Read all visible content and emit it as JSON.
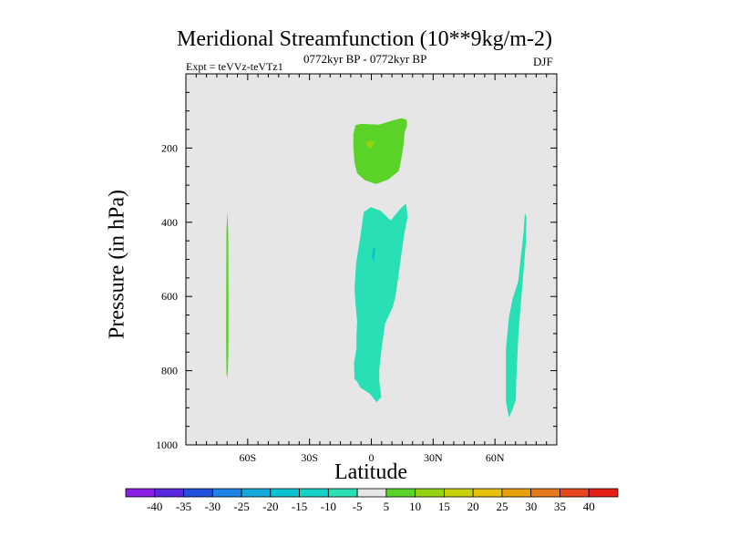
{
  "chart_data": {
    "type": "contour",
    "title": "Meridional Streamfunction (10**9kg/m-2)",
    "left_string": "Expt = teVVz-teVTz1",
    "center_string": "0772kyr BP - 0772kyr BP",
    "right_string": "DJF",
    "xlabel": "Latitude",
    "ylabel": "Pressure (in hPa)",
    "xlim": [
      -90,
      90
    ],
    "ylim": [
      1000,
      0
    ],
    "y_reversed": true,
    "x_ticks": [
      -60,
      -30,
      0,
      30,
      60
    ],
    "x_tick_labels": [
      "60S",
      "30S",
      "0",
      "30N",
      "60N"
    ],
    "y_ticks": [
      200,
      400,
      600,
      800,
      1000
    ],
    "y_tick_labels": [
      "200",
      "400",
      "600",
      "800",
      "1000"
    ],
    "background_color": "#e6e6e6",
    "colorbar": {
      "levels": [
        -40,
        -35,
        -30,
        -25,
        -20,
        -15,
        -10,
        -5,
        5,
        10,
        15,
        20,
        25,
        30,
        35,
        40
      ],
      "level_labels": [
        "-40",
        "-35",
        "-30",
        "-25",
        "-20",
        "-15",
        "-10",
        "-5",
        "5",
        "10",
        "15",
        "20",
        "25",
        "30",
        "35",
        "40"
      ],
      "colors": [
        "#8c1ee6",
        "#5a28dc",
        "#2050dc",
        "#1e82e6",
        "#14aadc",
        "#0ac3d2",
        "#14d2c8",
        "#28e0b4",
        "#e6e6e6",
        "#5ad228",
        "#96d214",
        "#c8d20a",
        "#e6c30a",
        "#e6a00a",
        "#e6781e",
        "#e6461e",
        "#e61e14"
      ]
    },
    "regions": [
      {
        "name": "upper-tropical-cell",
        "value_range": [
          5,
          10
        ],
        "color": "#5ad228",
        "polygon": [
          [
            -7.7,
            138
          ],
          [
            -5.1,
            135
          ],
          [
            3.6,
            137
          ],
          [
            7.4,
            131
          ],
          [
            10.7,
            125
          ],
          [
            14.5,
            120
          ],
          [
            17.1,
            123
          ],
          [
            17.3,
            140
          ],
          [
            16.1,
            160
          ],
          [
            15.7,
            190
          ],
          [
            14.3,
            237
          ],
          [
            13.3,
            262
          ],
          [
            8.2,
            285
          ],
          [
            2.3,
            297
          ],
          [
            -3.1,
            287
          ],
          [
            -6.9,
            268
          ],
          [
            -8.2,
            239
          ],
          [
            -8.7,
            198
          ],
          [
            -8.7,
            161
          ]
        ]
      },
      {
        "name": "upper-cell-core",
        "value_range": [
          10,
          15
        ],
        "color": "#96d214",
        "polygon": [
          [
            -2.8,
            185
          ],
          [
            -0.8,
            180
          ],
          [
            1.5,
            184
          ],
          [
            0.0,
            201
          ],
          [
            -1.6,
            198
          ]
        ]
      },
      {
        "name": "lower-tropical-cell",
        "value_range": [
          -10,
          -5
        ],
        "color": "#28e0b4",
        "polygon": [
          [
            -3.7,
            373
          ],
          [
            -0.2,
            359
          ],
          [
            4.5,
            369
          ],
          [
            9.4,
            395
          ],
          [
            14.5,
            361
          ],
          [
            16.9,
            350
          ],
          [
            17.6,
            387
          ],
          [
            15.9,
            433
          ],
          [
            13.3,
            538
          ],
          [
            11.8,
            597
          ],
          [
            10.5,
            627
          ],
          [
            6.7,
            673
          ],
          [
            5.2,
            731
          ],
          [
            3.9,
            793
          ],
          [
            3.9,
            830
          ],
          [
            4.8,
            871
          ],
          [
            2.5,
            885
          ],
          [
            -0.8,
            862
          ],
          [
            -5.3,
            846
          ],
          [
            -7.2,
            827
          ],
          [
            -8.2,
            823
          ],
          [
            -8.4,
            780
          ],
          [
            -7.2,
            739
          ],
          [
            -7.2,
            707
          ],
          [
            -6.9,
            667
          ],
          [
            -7.7,
            620
          ],
          [
            -8.2,
            579
          ],
          [
            -7.4,
            510
          ],
          [
            -5.3,
            438
          ]
        ]
      },
      {
        "name": "lower-cell-core",
        "value_range": [
          -15,
          -10
        ],
        "color": "#0ac3d2",
        "polygon": [
          [
            0.9,
            465
          ],
          [
            1.9,
            472
          ],
          [
            1.2,
            508
          ],
          [
            0.3,
            496
          ]
        ]
      },
      {
        "name": "northern-polar-strip",
        "value_range": [
          -10,
          -5
        ],
        "color": "#28e0b4",
        "polygon": [
          [
            74.5,
            376
          ],
          [
            75.3,
            385
          ],
          [
            75.0,
            452
          ],
          [
            73.3,
            571
          ],
          [
            71.4,
            702
          ],
          [
            70.3,
            829
          ],
          [
            70.1,
            879
          ],
          [
            68.6,
            904
          ],
          [
            66.8,
            926
          ],
          [
            65.3,
            884
          ],
          [
            65.3,
            742
          ],
          [
            66.8,
            656
          ],
          [
            68.6,
            606
          ],
          [
            71.3,
            559
          ],
          [
            72.6,
            490
          ],
          [
            73.8,
            431
          ]
        ]
      },
      {
        "name": "southern-polar-strip",
        "value_range": [
          5,
          10
        ],
        "color": "#5ad228",
        "polygon": [
          [
            -69.8,
            372
          ],
          [
            -69.4,
            450
          ],
          [
            -69.3,
            620
          ],
          [
            -69.4,
            760
          ],
          [
            -69.8,
            819
          ],
          [
            -70.3,
            808
          ],
          [
            -70.5,
            700
          ],
          [
            -70.4,
            560
          ],
          [
            -70.3,
            420
          ]
        ]
      }
    ]
  }
}
